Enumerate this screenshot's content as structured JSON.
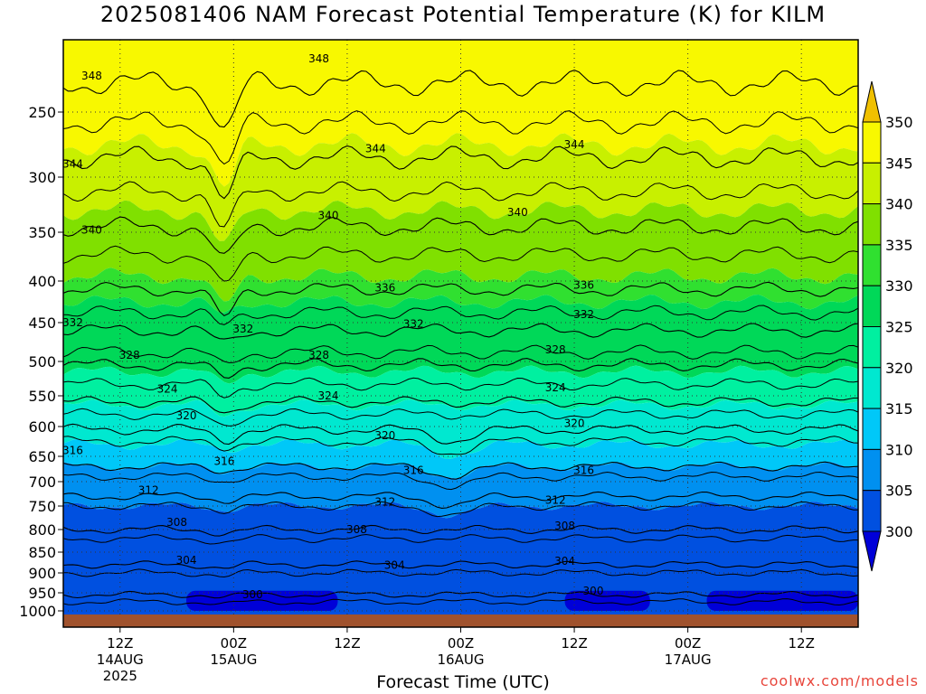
{
  "title": "2025081406 NAM Forecast Potential Temperature (K) for KILM",
  "xlabel": "Forecast Time (UTC)",
  "credit": "coolwx.com/models",
  "colors": {
    "300": "#0000d8",
    "305": "#0050e0",
    "310": "#0090f0",
    "315": "#00c8f8",
    "320": "#00e8d0",
    "325": "#00f0a0",
    "330": "#00d858",
    "335": "#30e030",
    "340": "#80e000",
    "345": "#c8f000",
    "350": "#f8f800",
    "above": "#f0c000",
    "ground": "#a0522d"
  },
  "chart_data": {
    "type": "heatmap",
    "title": "2025081406 NAM Forecast Potential Temperature (K) for KILM",
    "xlabel": "Forecast Time (UTC)",
    "ylabel": "",
    "x_ticks": [
      {
        "label": "12Z",
        "sub": "14AUG",
        "sub2": "2025",
        "hour": 6
      },
      {
        "label": "00Z",
        "sub": "15AUG",
        "sub2": "",
        "hour": 18
      },
      {
        "label": "12Z",
        "sub": "",
        "sub2": "",
        "hour": 30
      },
      {
        "label": "00Z",
        "sub": "16AUG",
        "sub2": "",
        "hour": 42
      },
      {
        "label": "12Z",
        "sub": "",
        "sub2": "",
        "hour": 54
      },
      {
        "label": "00Z",
        "sub": "17AUG",
        "sub2": "",
        "hour": 66
      },
      {
        "label": "12Z",
        "sub": "",
        "sub2": "",
        "hour": 78
      }
    ],
    "x_range": [
      0,
      84
    ],
    "y_ticks": [
      250,
      300,
      350,
      400,
      450,
      500,
      550,
      600,
      650,
      700,
      750,
      800,
      850,
      900,
      950,
      1000
    ],
    "y_range": [
      200,
      1030
    ],
    "colorbar_ticks": [
      300,
      305,
      310,
      315,
      320,
      325,
      330,
      335,
      340,
      345,
      350
    ],
    "contours": [
      {
        "value": 348,
        "level": 230
      },
      {
        "value": 344,
        "level": 285
      },
      {
        "value": 340,
        "level": 345
      },
      {
        "value": 336,
        "level": 410
      },
      {
        "value": 332,
        "level": 460
      },
      {
        "value": 328,
        "level": 505
      },
      {
        "value": 324,
        "level": 560
      },
      {
        "value": 320,
        "level": 605
      },
      {
        "value": 316,
        "level": 670
      },
      {
        "value": 312,
        "level": 730
      },
      {
        "value": 308,
        "level": 800
      },
      {
        "value": 304,
        "level": 880
      },
      {
        "value": 300,
        "level": 955
      }
    ],
    "contour_labels": [
      {
        "text": "348",
        "hour": 3,
        "level": 225
      },
      {
        "text": "348",
        "hour": 27,
        "level": 213
      },
      {
        "text": "344",
        "hour": 1,
        "level": 290
      },
      {
        "text": "344",
        "hour": 33,
        "level": 278
      },
      {
        "text": "344",
        "hour": 54,
        "level": 275
      },
      {
        "text": "340",
        "hour": 3,
        "level": 348
      },
      {
        "text": "340",
        "hour": 28,
        "level": 335
      },
      {
        "text": "340",
        "hour": 48,
        "level": 332
      },
      {
        "text": "336",
        "hour": 34,
        "level": 408
      },
      {
        "text": "336",
        "hour": 55,
        "level": 405
      },
      {
        "text": "332",
        "hour": 1,
        "level": 450
      },
      {
        "text": "332",
        "hour": 19,
        "level": 458
      },
      {
        "text": "332",
        "hour": 37,
        "level": 452
      },
      {
        "text": "332",
        "hour": 55,
        "level": 440
      },
      {
        "text": "328",
        "hour": 7,
        "level": 492
      },
      {
        "text": "328",
        "hour": 27,
        "level": 492
      },
      {
        "text": "328",
        "hour": 52,
        "level": 485
      },
      {
        "text": "324",
        "hour": 11,
        "level": 540
      },
      {
        "text": "324",
        "hour": 28,
        "level": 550
      },
      {
        "text": "324",
        "hour": 52,
        "level": 538
      },
      {
        "text": "320",
        "hour": 13,
        "level": 582
      },
      {
        "text": "320",
        "hour": 34,
        "level": 615
      },
      {
        "text": "320",
        "hour": 54,
        "level": 595
      },
      {
        "text": "316",
        "hour": 1,
        "level": 640
      },
      {
        "text": "316",
        "hour": 17,
        "level": 660
      },
      {
        "text": "316",
        "hour": 37,
        "level": 678
      },
      {
        "text": "316",
        "hour": 55,
        "level": 678
      },
      {
        "text": "312",
        "hour": 9,
        "level": 718
      },
      {
        "text": "312",
        "hour": 34,
        "level": 742
      },
      {
        "text": "312",
        "hour": 52,
        "level": 738
      },
      {
        "text": "308",
        "hour": 12,
        "level": 785
      },
      {
        "text": "308",
        "hour": 31,
        "level": 800
      },
      {
        "text": "308",
        "hour": 53,
        "level": 792
      },
      {
        "text": "304",
        "hour": 13,
        "level": 870
      },
      {
        "text": "304",
        "hour": 35,
        "level": 882
      },
      {
        "text": "304",
        "hour": 53,
        "level": 872
      },
      {
        "text": "300",
        "hour": 20,
        "level": 955
      },
      {
        "text": "300",
        "hour": 56,
        "level": 945
      }
    ]
  }
}
